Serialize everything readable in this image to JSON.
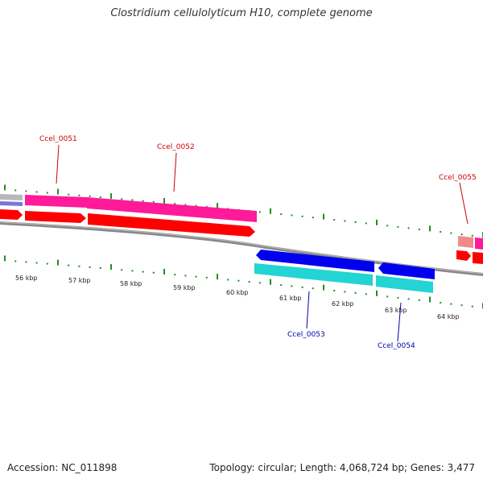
{
  "title": "Clostridium cellulolyticum H10, complete genome",
  "footer": {
    "accession": "Accession: NC_011898",
    "summary": "Topology: circular; Length: 4,068,724 bp; Genes: 3,477"
  },
  "colors": {
    "forward_cds": "#ff0000",
    "forward_gene": "#ff1a9a",
    "reverse_cds": "#0000ee",
    "reverse_gene": "#22d4d4",
    "forward_label": "#cc0000",
    "reverse_label": "#0000aa",
    "backbone": "#888888",
    "ticks": "#1f8f1f"
  },
  "scale_labels": [
    "56 kbp",
    "57 kbp",
    "58 kbp",
    "59 kbp",
    "60 kbp",
    "61 kbp",
    "62 kbp",
    "63 kbp",
    "64 kbp"
  ],
  "genes": [
    {
      "label": "Ccel_0051",
      "strand": "forward"
    },
    {
      "label": "Ccel_0052",
      "strand": "forward"
    },
    {
      "label": "Ccel_0053",
      "strand": "reverse"
    },
    {
      "label": "Ccel_0054",
      "strand": "reverse"
    },
    {
      "label": "Ccel_0055",
      "strand": "forward"
    }
  ]
}
